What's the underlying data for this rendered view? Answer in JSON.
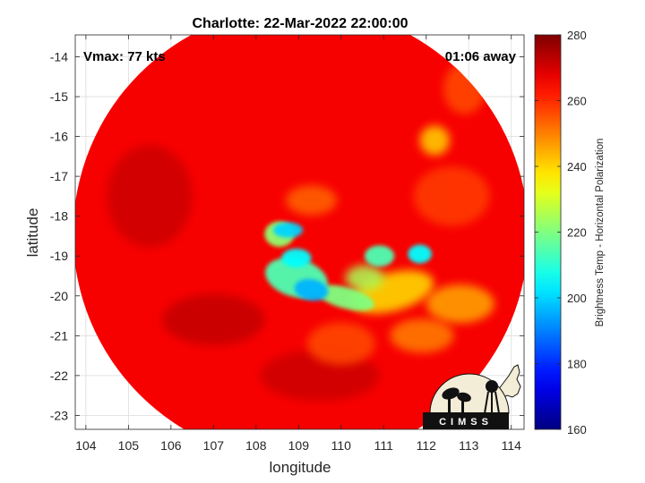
{
  "chart_data": {
    "type": "heatmap",
    "title": "Charlotte: 22-Mar-2022 22:00:00",
    "xlabel": "longitude",
    "ylabel": "latitude",
    "xlim": [
      103.75,
      114.3
    ],
    "ylim": [
      -23.35,
      -13.45
    ],
    "x_ticks": [
      "104",
      "105",
      "106",
      "107",
      "108",
      "109",
      "110",
      "111",
      "112",
      "113",
      "114"
    ],
    "y_ticks": [
      "-14",
      "-15",
      "-16",
      "-17",
      "-18",
      "-19",
      "-20",
      "-21",
      "-22",
      "-23"
    ],
    "grid": true,
    "annotations": {
      "vmax": "Vmax: 77 kts",
      "time_away": "01:06 away"
    },
    "colorbar": {
      "label": "Brightness Temp - Horizontal Polarization",
      "min": 160,
      "max": 280,
      "ticks": [
        "160",
        "180",
        "200",
        "220",
        "240",
        "260",
        "280"
      ],
      "colormap": "jet"
    },
    "swath": {
      "center_lon": 109.05,
      "center_lat": -18.45,
      "radius_deg": 5.35,
      "background_value": 266
    },
    "features": [
      {
        "lon": 108.95,
        "lat": -19.55,
        "rx": 0.75,
        "ry": 0.45,
        "rot": 15,
        "value": 214
      },
      {
        "lon": 108.55,
        "lat": -18.45,
        "rx": 0.35,
        "ry": 0.3,
        "rot": 0,
        "value": 222
      },
      {
        "lon": 108.75,
        "lat": -18.35,
        "rx": 0.35,
        "ry": 0.18,
        "rot": 0,
        "value": 200
      },
      {
        "lon": 108.95,
        "lat": -19.05,
        "rx": 0.35,
        "ry": 0.22,
        "rot": 0,
        "value": 205
      },
      {
        "lon": 109.3,
        "lat": -19.85,
        "rx": 0.4,
        "ry": 0.25,
        "rot": 10,
        "value": 196
      },
      {
        "lon": 110.1,
        "lat": -20.05,
        "rx": 0.7,
        "ry": 0.25,
        "rot": 15,
        "value": 220
      },
      {
        "lon": 110.55,
        "lat": -19.55,
        "rx": 0.45,
        "ry": 0.3,
        "rot": 0,
        "value": 225
      },
      {
        "lon": 110.9,
        "lat": -19.0,
        "rx": 0.35,
        "ry": 0.25,
        "rot": 0,
        "value": 214
      },
      {
        "lon": 111.85,
        "lat": -18.95,
        "rx": 0.28,
        "ry": 0.22,
        "rot": 0,
        "value": 205
      },
      {
        "lon": 111.2,
        "lat": -19.9,
        "rx": 1.0,
        "ry": 0.45,
        "rot": -15,
        "value": 238
      },
      {
        "lon": 112.2,
        "lat": -16.1,
        "rx": 0.35,
        "ry": 0.35,
        "rot": 0,
        "value": 240
      },
      {
        "lon": 112.8,
        "lat": -20.2,
        "rx": 0.8,
        "ry": 0.45,
        "rot": 0,
        "value": 245
      },
      {
        "lon": 111.9,
        "lat": -21.0,
        "rx": 0.75,
        "ry": 0.4,
        "rot": 0,
        "value": 250
      },
      {
        "lon": 110.0,
        "lat": -21.2,
        "rx": 0.8,
        "ry": 0.5,
        "rot": 0,
        "value": 256
      },
      {
        "lon": 109.3,
        "lat": -17.6,
        "rx": 0.6,
        "ry": 0.35,
        "rot": 0,
        "value": 253
      },
      {
        "lon": 107.0,
        "lat": -20.6,
        "rx": 1.2,
        "ry": 0.6,
        "rot": 0,
        "value": 272
      },
      {
        "lon": 105.5,
        "lat": -17.5,
        "rx": 1.0,
        "ry": 1.2,
        "rot": 0,
        "value": 271
      },
      {
        "lon": 109.5,
        "lat": -22.0,
        "rx": 1.4,
        "ry": 0.6,
        "rot": 0,
        "value": 271
      },
      {
        "lon": 112.6,
        "lat": -17.5,
        "rx": 0.9,
        "ry": 0.7,
        "rot": 0,
        "value": 258
      },
      {
        "lon": 112.9,
        "lat": -14.8,
        "rx": 0.5,
        "ry": 0.6,
        "rot": 0,
        "value": 256
      }
    ],
    "logo": {
      "text": "CIMSS"
    }
  }
}
